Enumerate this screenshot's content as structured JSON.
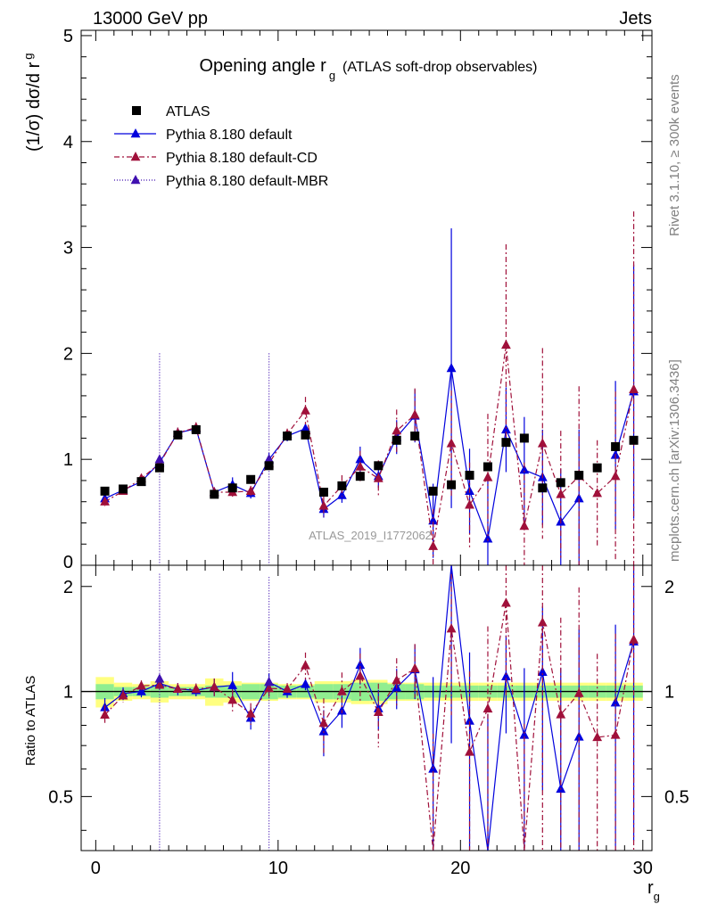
{
  "header": {
    "energy": "13000 GeV pp",
    "category": "Jets",
    "version": "Rivet 3.1.10, ≥ 300k events",
    "source": "mcplots.cern.ch [arXiv:1306.3436]",
    "analysis": "ATLAS_2019_I1772062"
  },
  "chart_data": {
    "type": "line",
    "title": "Opening angle r",
    "title_sub": "g",
    "title_note": "(ATLAS soft-drop observables)",
    "ylabel": "(1/σ) dσ/d r",
    "ylabel_sub": "g",
    "xlabel": "r",
    "xlabel_sub": "g",
    "ratio_ylabel": "Ratio to ATLAS",
    "xlim": [
      -0.8,
      30.5
    ],
    "ylim": [
      0,
      5.05
    ],
    "ratio_ylim": [
      0.35,
      2.3
    ],
    "x_ticks": [
      0,
      10,
      20,
      30
    ],
    "y_ticks": [
      1,
      2,
      3,
      4,
      5
    ],
    "y_tick_labels": [
      "1",
      "2",
      "3",
      "4",
      "5"
    ],
    "y_zero_label": "0",
    "ratio_ticks": [
      0.5,
      1,
      2
    ],
    "ratio_tick_labels": [
      "0.5",
      "1",
      "2"
    ],
    "x": [
      0.5,
      1.5,
      2.5,
      3.5,
      4.5,
      5.5,
      6.5,
      7.5,
      8.5,
      9.5,
      10.5,
      11.5,
      12.5,
      13.5,
      14.5,
      15.5,
      16.5,
      17.5,
      18.5,
      19.5,
      20.5,
      21.5,
      22.5,
      23.5,
      24.5,
      25.5,
      26.5,
      27.5,
      28.5,
      29.5
    ],
    "data": {
      "name": "ATLAS",
      "values": [
        0.7,
        0.72,
        0.79,
        0.92,
        1.23,
        1.28,
        0.67,
        0.73,
        0.81,
        0.94,
        1.22,
        1.23,
        0.69,
        0.75,
        0.84,
        0.94,
        1.18,
        1.22,
        0.7,
        0.76,
        0.85,
        0.93,
        1.16,
        1.2,
        0.73,
        0.78,
        0.85,
        0.92,
        1.12,
        1.18
      ],
      "band_inner": [
        0.05,
        0.03,
        0.03,
        0.04,
        0.03,
        0.03,
        0.04,
        0.04,
        0.05,
        0.05,
        0.04,
        0.04,
        0.05,
        0.05,
        0.06,
        0.06,
        0.05,
        0.05,
        0.04,
        0.04,
        0.04,
        0.04,
        0.04,
        0.04,
        0.04,
        0.04,
        0.04,
        0.04,
        0.04,
        0.04
      ],
      "band_outer": [
        0.1,
        0.06,
        0.05,
        0.07,
        0.05,
        0.05,
        0.09,
        0.07,
        0.06,
        0.06,
        0.05,
        0.05,
        0.07,
        0.07,
        0.08,
        0.08,
        0.06,
        0.06,
        0.06,
        0.06,
        0.06,
        0.06,
        0.06,
        0.06,
        0.06,
        0.06,
        0.06,
        0.06,
        0.06,
        0.06
      ]
    },
    "series": [
      {
        "name": "Pythia 8.180 default",
        "color": "#0000dd",
        "dash": "",
        "values": [
          0.63,
          0.71,
          0.79,
          0.97,
          1.25,
          1.29,
          0.69,
          0.76,
          0.68,
          1.0,
          1.22,
          1.29,
          0.53,
          0.66,
          1.0,
          0.84,
          1.21,
          1.41,
          0.42,
          1.86,
          0.7,
          0.25,
          1.28,
          0.9,
          0.83,
          0.41,
          0.63,
          null,
          1.04,
          1.64
        ],
        "err": [
          0.04,
          0.03,
          0.03,
          0.04,
          0.05,
          0.05,
          0.04,
          0.07,
          0.05,
          0.06,
          0.05,
          0.05,
          0.08,
          0.07,
          0.12,
          0.11,
          0.16,
          0.25,
          0.35,
          1.32,
          0.4,
          0.55,
          0.4,
          0.5,
          0.45,
          0.5,
          0.65,
          0,
          0.7,
          1.2
        ]
      },
      {
        "name": "Pythia 8.180 default-CD",
        "color": "#a0103a",
        "dash": "6,3,2,3",
        "values": [
          0.6,
          0.7,
          0.82,
          0.96,
          1.25,
          1.3,
          0.69,
          0.69,
          0.7,
          0.96,
          1.24,
          1.46,
          0.56,
          0.75,
          0.93,
          0.82,
          1.27,
          1.42,
          0.18,
          1.15,
          0.57,
          0.83,
          2.08,
          0.37,
          1.15,
          0.67,
          0.84,
          0.68,
          0.84,
          1.66
        ],
        "err": [
          0.04,
          0.03,
          0.03,
          0.04,
          0.05,
          0.05,
          0.04,
          0.05,
          0.05,
          0.06,
          0.05,
          0.13,
          0.1,
          0.1,
          0.15,
          0.17,
          0.2,
          0.25,
          0.35,
          0.5,
          0.4,
          0.6,
          0.95,
          0.6,
          0.9,
          0.6,
          0.85,
          0.5,
          0.8,
          1.68
        ]
      },
      {
        "name": "Pythia 8.180 default-MBR",
        "color": "#4010b0",
        "dash": "1,2",
        "values": [
          null,
          null,
          null,
          1.0,
          null,
          null,
          null,
          null,
          null,
          1.0,
          null,
          null,
          null,
          null,
          null,
          null,
          null,
          null,
          null,
          null,
          null,
          null,
          null,
          null,
          null,
          null,
          null,
          null,
          null,
          null
        ],
        "err": [
          0,
          0,
          0,
          1.0,
          0,
          0,
          0,
          0,
          0,
          1.0,
          0,
          0,
          0,
          0,
          0,
          0,
          0,
          0,
          0,
          0,
          0,
          0,
          0,
          0,
          0,
          0,
          0,
          0,
          0,
          0
        ]
      }
    ]
  }
}
